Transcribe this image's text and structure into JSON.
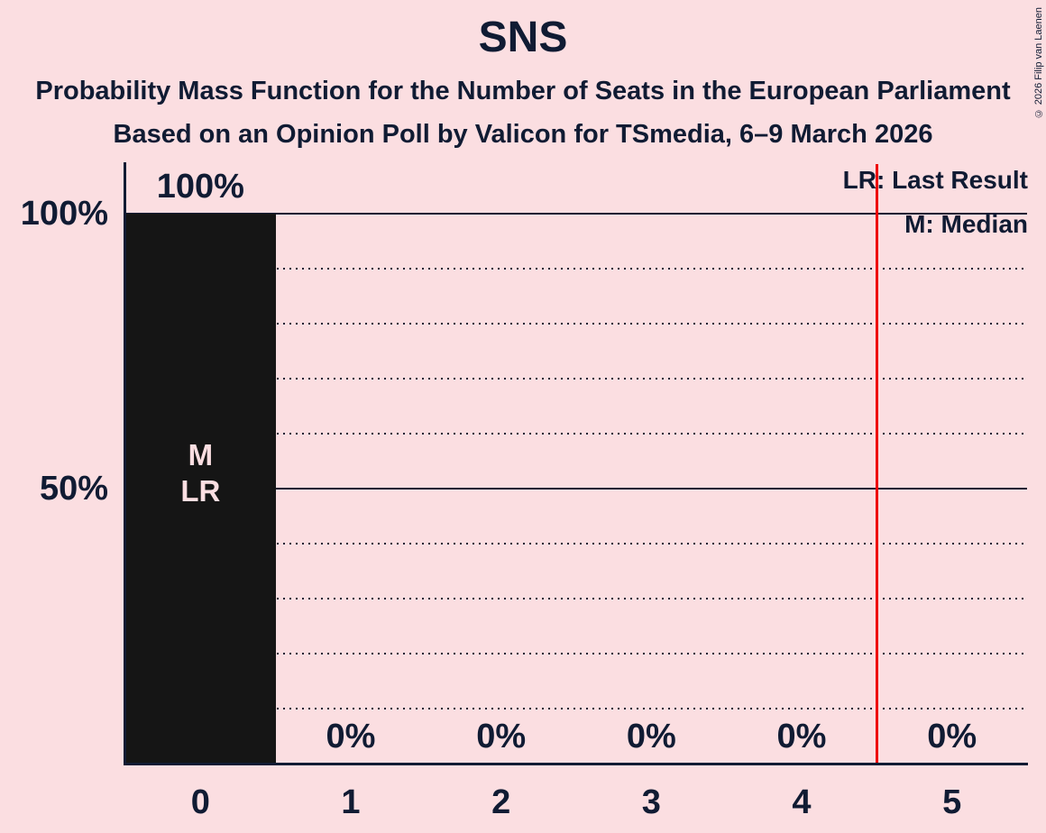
{
  "title": "SNS",
  "subtitles": [
    "Probability Mass Function for the Number of Seats in the European Parliament",
    "Based on an Opinion Poll by Valicon for TSmedia, 6–9 March 2026"
  ],
  "copyright": "© 2026 Filip van Laenen",
  "legend": {
    "lr": "LR: Last Result",
    "m": "M: Median"
  },
  "colors": {
    "background": "#fbdee1",
    "ink": "#101b33",
    "bar": "#151515",
    "bar_label": "#fbdee1",
    "red_line": "#ee0606"
  },
  "chart_data": {
    "type": "bar",
    "title": "SNS",
    "categories": [
      "0",
      "1",
      "2",
      "3",
      "4",
      "5"
    ],
    "values": [
      100,
      0,
      0,
      0,
      0,
      0
    ],
    "value_labels": [
      "100%",
      "0%",
      "0%",
      "0%",
      "0%",
      "0%"
    ],
    "ylim": [
      0,
      100
    ],
    "y_ticks": [
      {
        "pct": 100,
        "label": "100%"
      },
      {
        "pct": 50,
        "label": "50%"
      }
    ],
    "gridlines": {
      "solid_pcts": [
        100,
        50
      ],
      "dotted_pcts": [
        90,
        80,
        70,
        60,
        40,
        30,
        20,
        10
      ]
    },
    "bar_annotation": {
      "category_index": 0,
      "lines": [
        "M",
        "LR"
      ]
    },
    "median_seats": "0",
    "last_result_seats": "0",
    "red_vertical_line_x": 4.5,
    "legend_position": "top-right",
    "grid": "horizontal-dotted-10pct"
  }
}
